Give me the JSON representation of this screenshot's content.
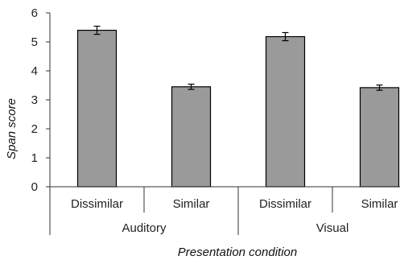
{
  "chart_data": {
    "type": "bar",
    "ylabel": "Span score",
    "xlabel": "Presentation condition",
    "ylim": [
      0,
      6
    ],
    "yticks": [
      0,
      1,
      2,
      3,
      4,
      5,
      6
    ],
    "groups": [
      "Auditory",
      "Visual"
    ],
    "categories": [
      "Dissimilar",
      "Similar",
      "Dissimilar",
      "Similar"
    ],
    "group_of_category": [
      0,
      0,
      1,
      1
    ],
    "values": [
      5.4,
      3.45,
      5.18,
      3.42
    ],
    "error": [
      0.14,
      0.09,
      0.14,
      0.09
    ],
    "bar_color": "#9a9a9a",
    "bar_edge_color": "#000000",
    "grid": false,
    "legend": false
  }
}
